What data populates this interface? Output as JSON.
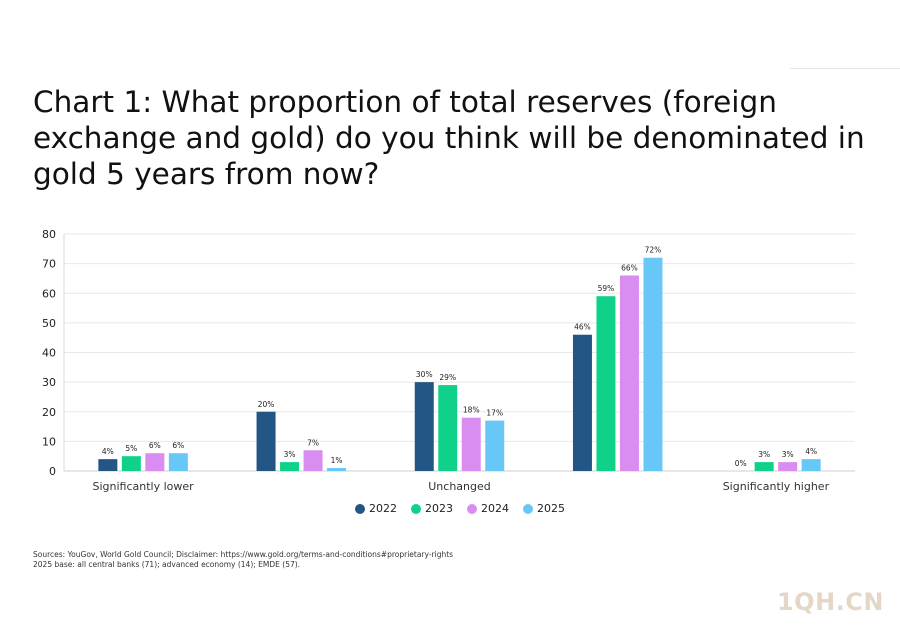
{
  "title": "Chart 1: What proportion of total reserves (foreign exchange and gold) do you think will be denominated in gold 5 years from now?",
  "colors": {
    "2022": "#235684",
    "2023": "#10d18a",
    "2024": "#d98df0",
    "2025": "#67c8f7"
  },
  "chart_data": {
    "type": "bar",
    "categories": [
      "Significantly lower",
      "",
      "Unchanged",
      "",
      "Significantly higher"
    ],
    "series": [
      {
        "name": "2022",
        "values": [
          4,
          20,
          30,
          46,
          0
        ]
      },
      {
        "name": "2023",
        "values": [
          5,
          3,
          29,
          59,
          3
        ]
      },
      {
        "name": "2024",
        "values": [
          6,
          7,
          18,
          66,
          3
        ]
      },
      {
        "name": "2025",
        "values": [
          6,
          1,
          17,
          72,
          4
        ]
      }
    ],
    "data_labels": [
      [
        "4%",
        "5%",
        "6%",
        "6%"
      ],
      [
        "20%",
        "3%",
        "7%",
        "1%"
      ],
      [
        "30%",
        "29%",
        "18%",
        "17%"
      ],
      [
        "46%",
        "59%",
        "66%",
        "72%"
      ],
      [
        "0%",
        "3%",
        "3%",
        "4%"
      ]
    ],
    "yticks": [
      0,
      10,
      20,
      30,
      40,
      50,
      60,
      70,
      80
    ],
    "ylim": [
      0,
      80
    ],
    "grid": true,
    "legend_position": "bottom"
  },
  "legend": [
    {
      "label": "2022"
    },
    {
      "label": "2023"
    },
    {
      "label": "2024"
    },
    {
      "label": "2025"
    }
  ],
  "footnotes": {
    "line1": "Sources: YouGov, World Gold Council; Disclaimer: https://www.gold.org/terms-and-conditions#proprietary-rights",
    "line2": "2025 base: all central banks (71); advanced economy (14); EMDE (57)."
  },
  "watermark": "1QH.CN"
}
